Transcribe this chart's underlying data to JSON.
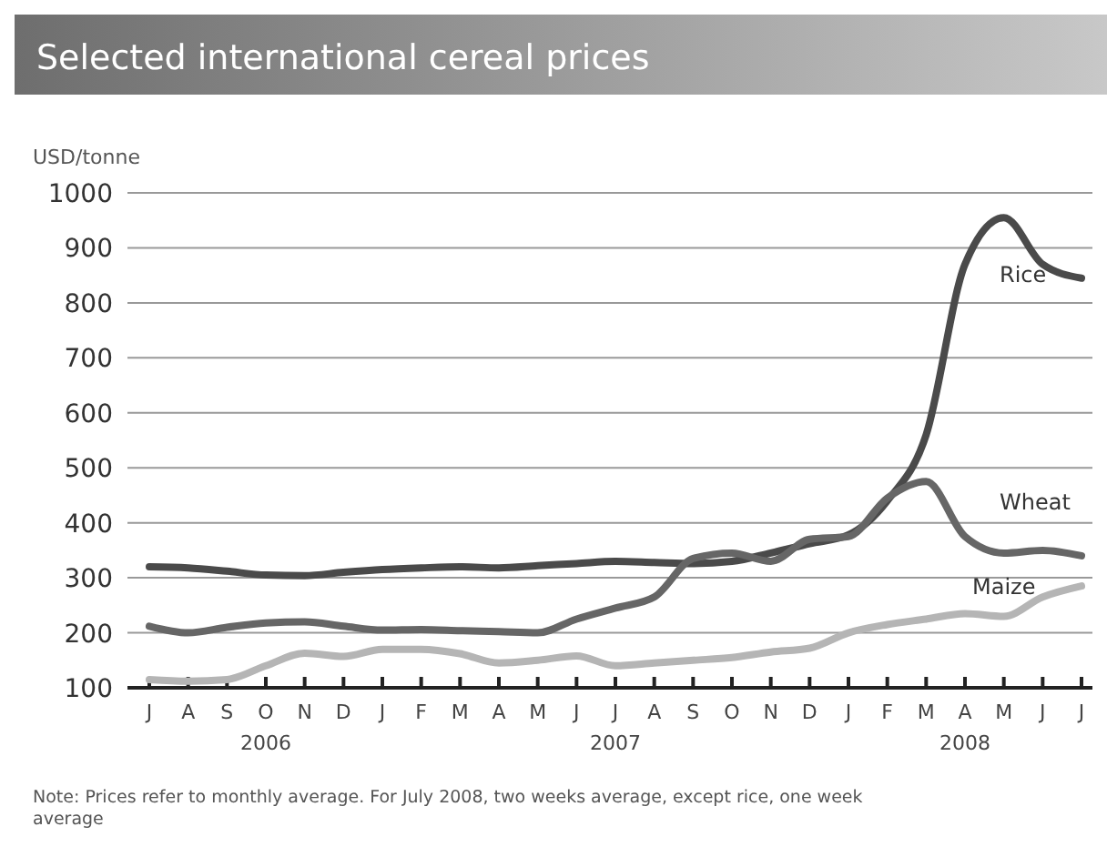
{
  "chart_data": {
    "type": "line",
    "title": "Selected international cereal prices",
    "ylabel": "USD/tonne",
    "categories": [
      "J",
      "A",
      "S",
      "O",
      "N",
      "D",
      "J",
      "F",
      "M",
      "A",
      "M",
      "J",
      "J",
      "A",
      "S",
      "O",
      "N",
      "D",
      "J",
      "F",
      "M",
      "A",
      "M",
      "J",
      "J"
    ],
    "ylim": [
      100,
      1000
    ],
    "yticks": [
      100,
      200,
      300,
      400,
      500,
      600,
      700,
      800,
      900,
      1000
    ],
    "grid": "y",
    "series": [
      {
        "name": "Rice",
        "color": "#4a4a4a",
        "values": [
          320,
          318,
          312,
          305,
          304,
          310,
          315,
          318,
          320,
          318,
          322,
          326,
          330,
          328,
          326,
          330,
          345,
          362,
          378,
          440,
          560,
          870,
          955,
          870,
          845
        ]
      },
      {
        "name": "Wheat",
        "color": "#666666",
        "values": [
          212,
          200,
          210,
          218,
          220,
          212,
          205,
          206,
          204,
          202,
          200,
          225,
          245,
          265,
          335,
          345,
          330,
          370,
          375,
          445,
          475,
          375,
          345,
          350,
          340
        ]
      },
      {
        "name": "Maize",
        "color": "#b5b5b5",
        "values": [
          115,
          112,
          115,
          140,
          163,
          157,
          170,
          170,
          162,
          145,
          150,
          158,
          140,
          145,
          150,
          155,
          165,
          172,
          200,
          215,
          225,
          235,
          230,
          265,
          285
        ]
      }
    ],
    "annotations": [
      "2006",
      "2007",
      "2008",
      "Note: Prices refer to monthly average. For July 2008, two weeks average, except rice, one week average"
    ]
  }
}
